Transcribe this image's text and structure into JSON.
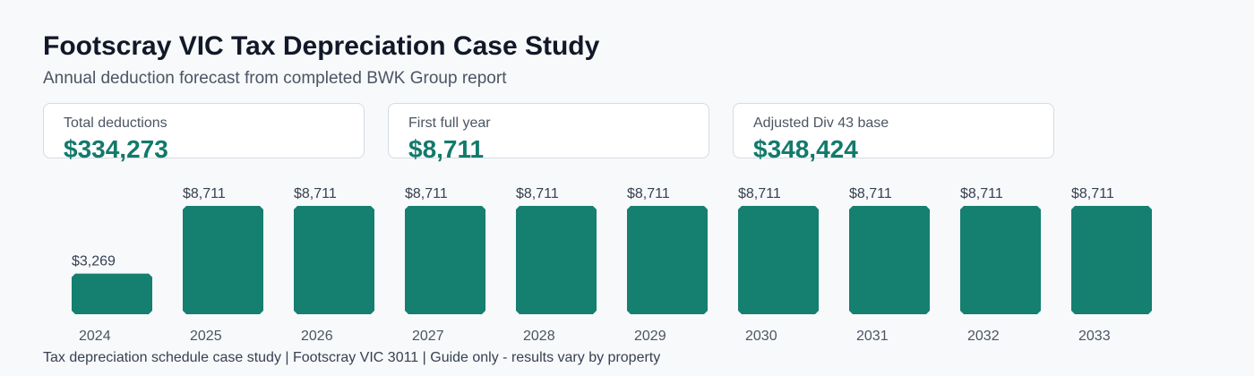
{
  "header": {
    "title": "Footscray VIC Tax Depreciation Case Study",
    "subtitle": "Annual deduction forecast from completed BWK Group report"
  },
  "stats": [
    {
      "label": "Total deductions",
      "value": "$334,273"
    },
    {
      "label": "First full year",
      "value": "$8,711"
    },
    {
      "label": "Adjusted Div 43 base",
      "value": "$348,424"
    }
  ],
  "chart_data": {
    "type": "bar",
    "categories": [
      "2024",
      "2025",
      "2026",
      "2027",
      "2028",
      "2029",
      "2030",
      "2031",
      "2032",
      "2033"
    ],
    "values": [
      3269,
      8711,
      8711,
      8711,
      8711,
      8711,
      8711,
      8711,
      8711,
      8711
    ],
    "data_labels": [
      "$3,269",
      "$8,711",
      "$8,711",
      "$8,711",
      "$8,711",
      "$8,711",
      "$8,711",
      "$8,711",
      "$8,711",
      "$8,711"
    ],
    "title": "",
    "xlabel": "",
    "ylabel": "",
    "ylim": [
      0,
      8711
    ],
    "grid": false,
    "bar_color": "#157f70"
  },
  "footer": {
    "text": "Tax depreciation schedule case study | Footscray VIC 3011 | Guide only - results vary by property"
  },
  "colors": {
    "accent": "#127a6b",
    "bar": "#157f70",
    "background": "#f7f9fb"
  }
}
